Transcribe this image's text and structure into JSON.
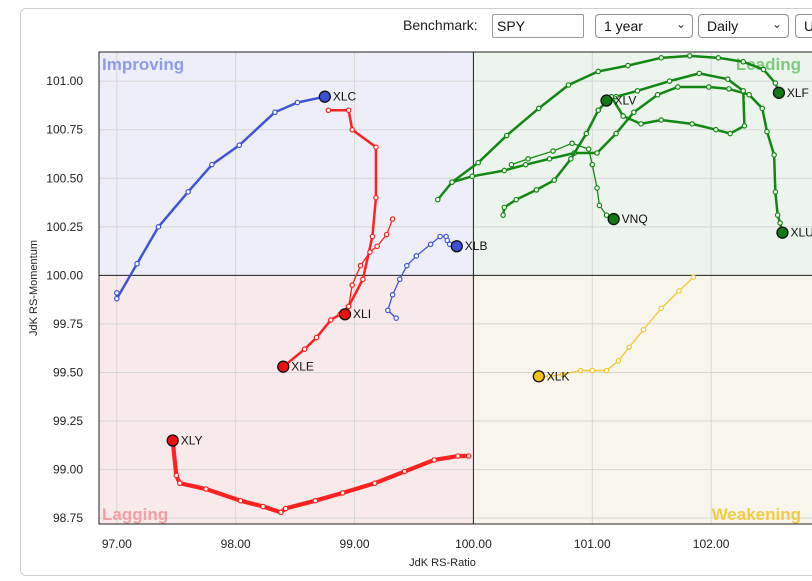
{
  "toolbar": {
    "benchmark_label": "Benchmark:",
    "benchmark_value": "SPY",
    "period_value": "1 year",
    "frequency_value": "Daily",
    "extra_value": "U"
  },
  "colors": {
    "improving_bg": "#eeeef8",
    "leading_bg": "#edf3ed",
    "weakening_bg": "#f8f5ec",
    "lagging_bg": "#f8eaea",
    "improving_label": "#8f9be6",
    "leading_label": "#7ccc7c",
    "weakening_label": "#f2cc44",
    "lagging_label": "#f2a0a5",
    "blue": "#4054d8",
    "red": "#ff2020",
    "green": "#118811",
    "yellow": "#f0c830"
  },
  "chart_data": {
    "type": "scatter",
    "subtype": "relative-rotation-graph",
    "xlabel": "JdK RS-Ratio",
    "ylabel": "JdK RS-Momentum",
    "xlim": [
      96.85,
      103.0
    ],
    "ylim": [
      98.72,
      101.15
    ],
    "xticks": [
      "97.00",
      "98.00",
      "99.00",
      "100.00",
      "101.00",
      "102.00"
    ],
    "xtick_values": [
      97,
      98,
      99,
      100,
      101,
      102
    ],
    "yticks": [
      "101.00",
      "100.75",
      "100.50",
      "100.25",
      "100.00",
      "99.75",
      "99.50",
      "99.25",
      "99.00",
      "98.75"
    ],
    "ytick_values": [
      101,
      100.75,
      100.5,
      100.25,
      100,
      99.75,
      99.5,
      99.25,
      99,
      98.75
    ],
    "center": [
      100,
      100
    ],
    "quadrants": {
      "improving": "Improving",
      "leading": "Leading",
      "weakening": "Weakening",
      "lagging": "Lagging"
    },
    "series": [
      {
        "name": "XLC",
        "color": "blue",
        "weight": "thick",
        "points": [
          [
            97.0,
            99.91
          ],
          [
            97.0,
            99.88
          ],
          [
            97.17,
            100.06
          ],
          [
            97.35,
            100.25
          ],
          [
            97.6,
            100.43
          ],
          [
            97.8,
            100.57
          ],
          [
            98.03,
            100.67
          ],
          [
            98.33,
            100.84
          ],
          [
            98.52,
            100.89
          ],
          [
            98.75,
            100.92
          ]
        ]
      },
      {
        "name": "XLE",
        "color": "red",
        "weight": "thick",
        "points": [
          [
            98.78,
            100.85
          ],
          [
            98.95,
            100.85
          ],
          [
            98.98,
            100.75
          ],
          [
            99.18,
            100.66
          ],
          [
            99.18,
            100.4
          ],
          [
            99.15,
            100.2
          ],
          [
            99.07,
            99.98
          ],
          [
            98.95,
            99.84
          ],
          [
            98.88,
            99.8
          ],
          [
            98.8,
            99.77
          ],
          [
            98.68,
            99.68
          ],
          [
            98.58,
            99.62
          ],
          [
            98.4,
            99.53
          ]
        ]
      },
      {
        "name": "XLB",
        "color": "blue",
        "weight": "thin",
        "points": [
          [
            99.35,
            99.78
          ],
          [
            99.28,
            99.82
          ],
          [
            99.32,
            99.9
          ],
          [
            99.38,
            99.98
          ],
          [
            99.44,
            100.05
          ],
          [
            99.52,
            100.1
          ],
          [
            99.64,
            100.16
          ],
          [
            99.72,
            100.2
          ],
          [
            99.77,
            100.2
          ],
          [
            99.78,
            100.18
          ],
          [
            99.8,
            100.16
          ],
          [
            99.86,
            100.15
          ]
        ]
      },
      {
        "name": "XLU",
        "color": "green",
        "weight": "thick",
        "points": [
          [
            99.7,
            100.39
          ],
          [
            99.82,
            100.48
          ],
          [
            99.99,
            100.51
          ],
          [
            100.26,
            100.54
          ],
          [
            100.44,
            100.57
          ],
          [
            100.64,
            100.6
          ],
          [
            100.85,
            100.63
          ],
          [
            101.04,
            100.63
          ],
          [
            101.2,
            100.73
          ],
          [
            101.35,
            100.84
          ],
          [
            101.55,
            100.93
          ],
          [
            101.72,
            100.97
          ],
          [
            101.98,
            100.97
          ],
          [
            102.15,
            100.96
          ],
          [
            102.32,
            100.93
          ],
          [
            102.43,
            100.86
          ],
          [
            102.47,
            100.74
          ],
          [
            102.53,
            100.62
          ],
          [
            102.54,
            100.43
          ],
          [
            102.56,
            100.31
          ],
          [
            102.58,
            100.27
          ],
          [
            102.6,
            100.22
          ]
        ]
      },
      {
        "name": "XLF",
        "color": "green",
        "weight": "thick",
        "points": [
          [
            99.82,
            100.48
          ],
          [
            100.04,
            100.58
          ],
          [
            100.28,
            100.72
          ],
          [
            100.55,
            100.86
          ],
          [
            100.8,
            100.98
          ],
          [
            101.05,
            101.05
          ],
          [
            101.3,
            101.08
          ],
          [
            101.58,
            101.12
          ],
          [
            101.82,
            101.13
          ],
          [
            102.06,
            101.12
          ],
          [
            102.27,
            101.1
          ],
          [
            102.44,
            101.06
          ],
          [
            102.54,
            100.99
          ],
          [
            102.57,
            100.94
          ]
        ]
      },
      {
        "name": "XLV",
        "color": "green",
        "weight": "thick",
        "points": [
          [
            100.25,
            100.31
          ],
          [
            100.26,
            100.35
          ],
          [
            100.36,
            100.39
          ],
          [
            100.53,
            100.44
          ],
          [
            100.68,
            100.49
          ],
          [
            100.82,
            100.6
          ],
          [
            100.95,
            100.73
          ],
          [
            101.05,
            100.85
          ],
          [
            101.16,
            100.92
          ],
          [
            101.26,
            100.82
          ],
          [
            101.41,
            100.78
          ],
          [
            101.58,
            100.8
          ],
          [
            101.84,
            100.78
          ],
          [
            102.04,
            100.75
          ],
          [
            102.16,
            100.73
          ],
          [
            102.28,
            100.77
          ],
          [
            102.27,
            100.95
          ],
          [
            102.14,
            101.01
          ],
          [
            101.9,
            101.04
          ],
          [
            101.65,
            101.0
          ],
          [
            101.38,
            100.95
          ],
          [
            101.2,
            100.92
          ],
          [
            101.12,
            100.9
          ]
        ]
      },
      {
        "name": "VNQ",
        "color": "green",
        "weight": "thin",
        "points": [
          [
            100.32,
            100.57
          ],
          [
            100.46,
            100.6
          ],
          [
            100.67,
            100.64
          ],
          [
            100.83,
            100.68
          ],
          [
            100.97,
            100.65
          ],
          [
            101.0,
            100.57
          ],
          [
            101.04,
            100.45
          ],
          [
            101.06,
            100.36
          ],
          [
            101.12,
            100.31
          ],
          [
            101.18,
            100.29
          ]
        ]
      },
      {
        "name": "XLI",
        "color": "red",
        "weight": "thin",
        "points": [
          [
            99.32,
            100.29
          ],
          [
            99.27,
            100.21
          ],
          [
            99.19,
            100.15
          ],
          [
            99.13,
            100.12
          ],
          [
            99.05,
            100.05
          ],
          [
            98.98,
            99.95
          ],
          [
            98.95,
            99.84
          ],
          [
            98.92,
            99.8
          ]
        ]
      },
      {
        "name": "XLK",
        "color": "yellow",
        "weight": "thin",
        "points": [
          [
            101.85,
            99.99
          ],
          [
            101.73,
            99.92
          ],
          [
            101.58,
            99.83
          ],
          [
            101.43,
            99.72
          ],
          [
            101.31,
            99.63
          ],
          [
            101.22,
            99.56
          ],
          [
            101.12,
            99.51
          ],
          [
            101.0,
            99.51
          ],
          [
            100.9,
            99.51
          ],
          [
            100.75,
            99.49
          ],
          [
            100.64,
            99.48
          ],
          [
            100.55,
            99.48
          ]
        ]
      },
      {
        "name": "XLY",
        "color": "red",
        "weight": "xthick",
        "points": [
          [
            99.96,
            99.07
          ],
          [
            99.87,
            99.07
          ],
          [
            99.67,
            99.05
          ],
          [
            99.42,
            98.99
          ],
          [
            99.17,
            98.93
          ],
          [
            98.9,
            98.88
          ],
          [
            98.67,
            98.84
          ],
          [
            98.42,
            98.8
          ],
          [
            98.38,
            98.78
          ],
          [
            98.23,
            98.81
          ],
          [
            98.04,
            98.84
          ],
          [
            97.75,
            98.9
          ],
          [
            97.53,
            98.93
          ],
          [
            97.5,
            98.97
          ],
          [
            97.47,
            99.15
          ]
        ]
      }
    ]
  }
}
